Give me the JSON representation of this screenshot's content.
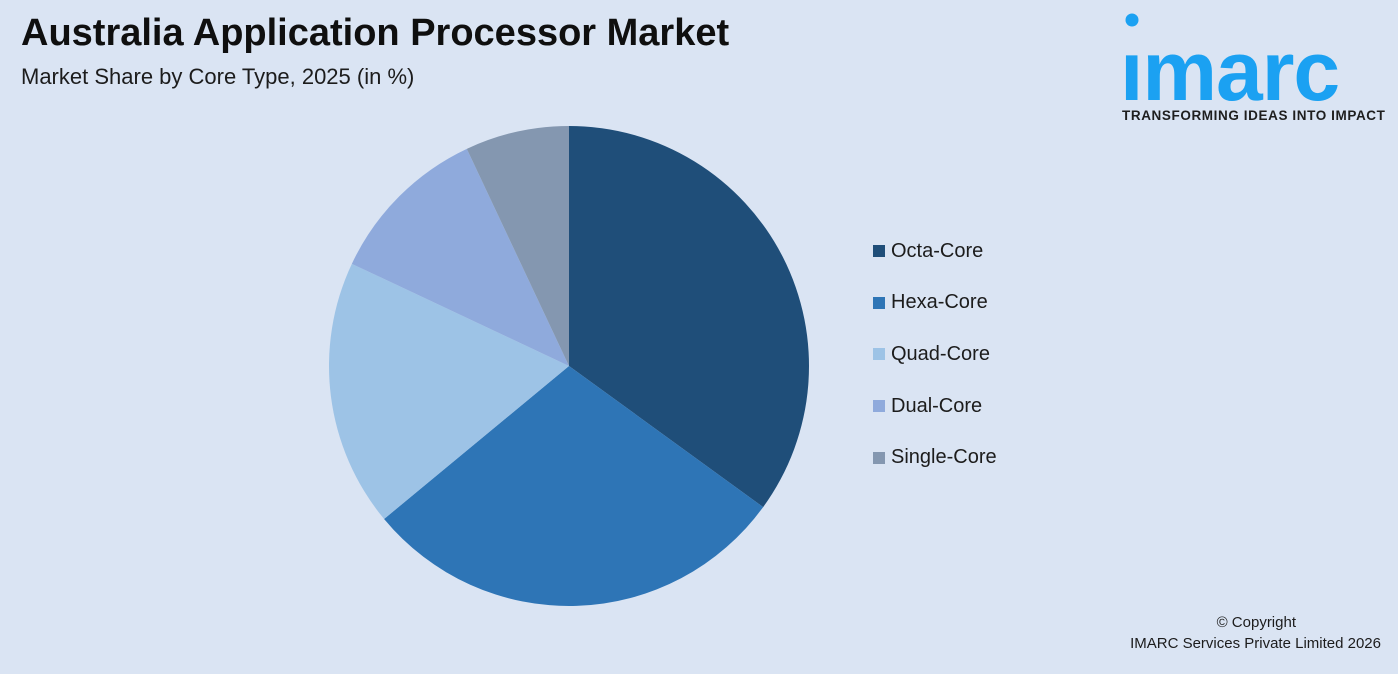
{
  "header": {
    "title": "Australia Application Processor Market",
    "subtitle": "Market Share by Core Type, 2025 (in %)"
  },
  "logo": {
    "wordmark": "imarc",
    "tagline": "TRANSFORMING IDEAS INTO IMPACT",
    "color": "#1ba1f2"
  },
  "chart_data": {
    "type": "pie",
    "title": "Australia Application Processor Market",
    "subtitle": "Market Share by Core Type, 2025 (in %)",
    "legend_position": "right",
    "categories": [
      "Octa-Core",
      "Hexa-Core",
      "Quad-Core",
      "Dual-Core",
      "Single-Core"
    ],
    "values": [
      35,
      29,
      18,
      11,
      7
    ],
    "colors": [
      "#1f4e79",
      "#2e75b6",
      "#9dc3e6",
      "#8faadc",
      "#8497b0"
    ]
  },
  "footer": {
    "copyright_line1": "© Copyright",
    "copyright_line2": "IMARC Services Private Limited 2026"
  }
}
